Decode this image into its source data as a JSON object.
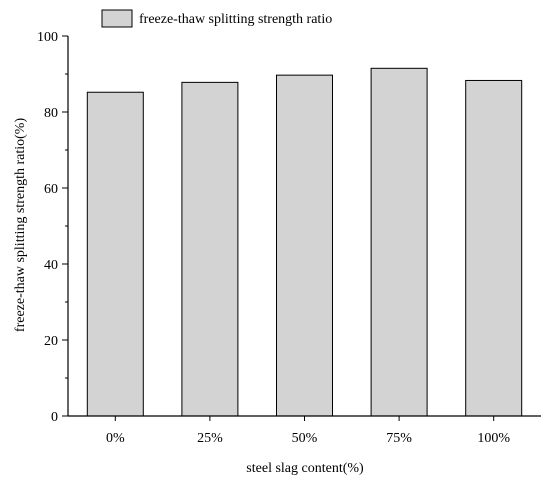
{
  "chart_data": {
    "type": "bar",
    "categories": [
      "0%",
      "25%",
      "50%",
      "75%",
      "100%"
    ],
    "series": [
      {
        "name": "freeze-thaw splitting strength ratio",
        "values": [
          85.2,
          87.8,
          89.7,
          91.5,
          88.3
        ]
      }
    ],
    "xlabel": "steel slag content(%)",
    "ylabel": "freeze-thaw splitting strength ratio(%)",
    "ylim": [
      0,
      100
    ],
    "yticks": [
      0,
      20,
      40,
      60,
      80,
      100
    ],
    "ytick_labels": [
      "0",
      "20",
      "40",
      "60",
      "80",
      "100"
    ],
    "grid": false,
    "legend_position": "top-left",
    "colors": {
      "bar_fill": "#d3d3d3",
      "bar_stroke": "#000000",
      "axis": "#000000"
    }
  }
}
